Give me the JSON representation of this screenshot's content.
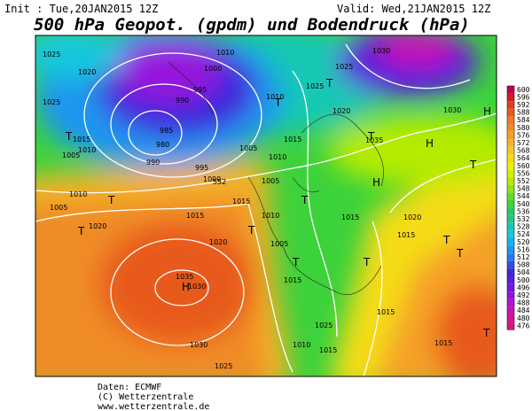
{
  "header": {
    "init": "Init : Tue,20JAN2015 12Z",
    "valid": "Valid: Wed,21JAN2015 12Z",
    "title": "500 hPa Geopot. (gpdm) und Bodendruck (hPa)"
  },
  "footer": [
    "Daten: ECMWF",
    "(C) Wetterzentrale",
    "www.wetterzentrale.de"
  ],
  "colorbar": {
    "ticks": [
      600,
      596,
      592,
      588,
      584,
      580,
      576,
      572,
      568,
      564,
      560,
      556,
      552,
      548,
      544,
      540,
      536,
      532,
      528,
      524,
      520,
      516,
      512,
      508,
      504,
      500,
      496,
      492,
      488,
      484,
      480,
      476
    ],
    "colors": [
      "#c80050",
      "#d01e1e",
      "#e03c1e",
      "#e85a1e",
      "#f07828",
      "#f08c28",
      "#f5a028",
      "#f5b428",
      "#f5c81e",
      "#f5dc14",
      "#f0f000",
      "#d2f000",
      "#b4eb00",
      "#8ce614",
      "#64dc28",
      "#3cd23c",
      "#28c864",
      "#1ec88c",
      "#14c8b4",
      "#14c8dc",
      "#14b4f0",
      "#1e96f0",
      "#2878f0",
      "#3250e6",
      "#3c28dc",
      "#5a1edc",
      "#7814dc",
      "#9614dc",
      "#b414d2",
      "#c814b4",
      "#d21496",
      "#dc1478"
    ]
  },
  "map_labels": [
    "1025",
    "1020",
    "1025",
    "1015",
    "1010",
    "1005",
    "1010",
    "1005",
    "1020",
    "1015",
    "1020",
    "1030",
    "1035",
    "1030",
    "1025",
    "1010",
    "1000",
    "995",
    "990",
    "985",
    "980",
    "990",
    "995",
    "1000",
    "1005",
    "1010",
    "1015",
    "1010",
    "1005",
    "1025",
    "1020",
    "1030",
    "1035",
    "1015",
    "1010",
    "1005",
    "1015",
    "1015",
    "1015",
    "1015",
    "1025",
    "1010",
    "1015",
    "1020",
    "1015",
    "552",
    "1025",
    "1030"
  ],
  "map_symbols": [
    "T",
    "H",
    "T",
    "T",
    "T",
    "H",
    "T",
    "H",
    "T",
    "T",
    "T",
    "H",
    "T",
    "T",
    "T",
    "T",
    "T",
    "T"
  ]
}
